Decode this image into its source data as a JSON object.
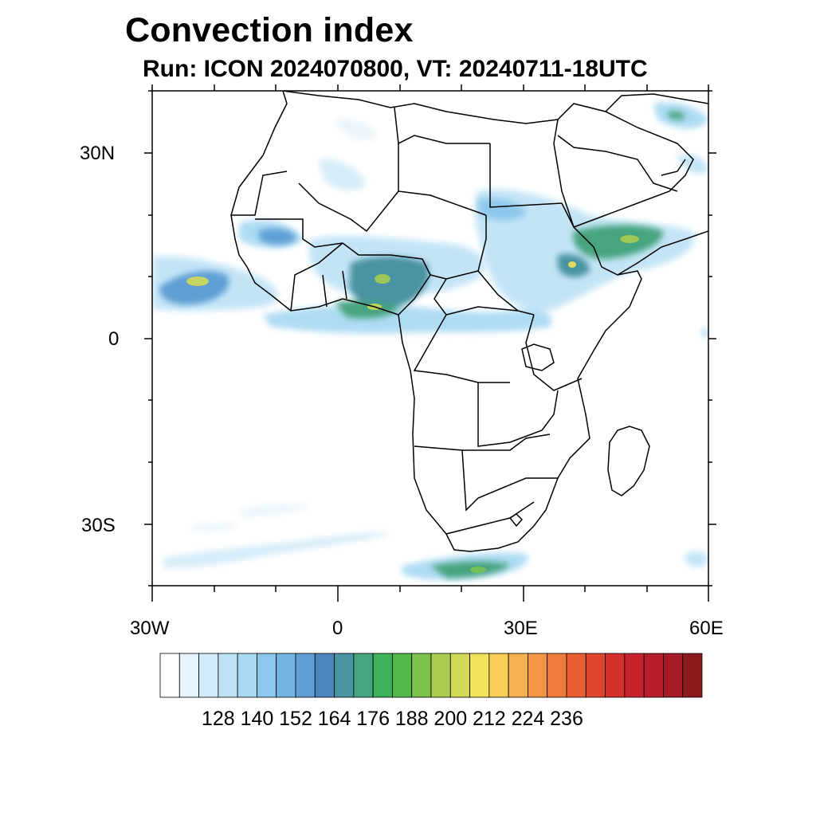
{
  "title": "Convection index",
  "subtitle": "Run: ICON 2024070800,  VT: 20240711-18UTC",
  "map": {
    "lon_range": [
      -30,
      60
    ],
    "lat_range": [
      -40,
      40
    ],
    "lat_labels": [
      "30N",
      "0",
      "30S"
    ],
    "lon_labels": [
      "30W",
      "0",
      "30E",
      "60E"
    ],
    "field": "Convection index",
    "content": "ICON model convection index over Africa and surrounding oceans with country boundaries"
  },
  "colorbar": {
    "levels": [
      "128",
      "140",
      "152",
      "164",
      "176",
      "188",
      "200",
      "212",
      "224",
      "236"
    ],
    "colors": [
      "#ffffff",
      "#e8f4fb",
      "#d2ebf8",
      "#bde2f6",
      "#a6d8f3",
      "#8dc8ec",
      "#76b5e3",
      "#5f9fd4",
      "#4b86bd",
      "#4a93a3",
      "#46a47f",
      "#3fb05a",
      "#52b84a",
      "#7cc24d",
      "#a8cd50",
      "#d2da55",
      "#f2e35a",
      "#f7cd56",
      "#f5b04f",
      "#f39544",
      "#ef7a39",
      "#e95f32",
      "#e0452e",
      "#d6302d",
      "#c8232c",
      "#b71c2a",
      "#a41b25",
      "#8b1a1d"
    ]
  }
}
